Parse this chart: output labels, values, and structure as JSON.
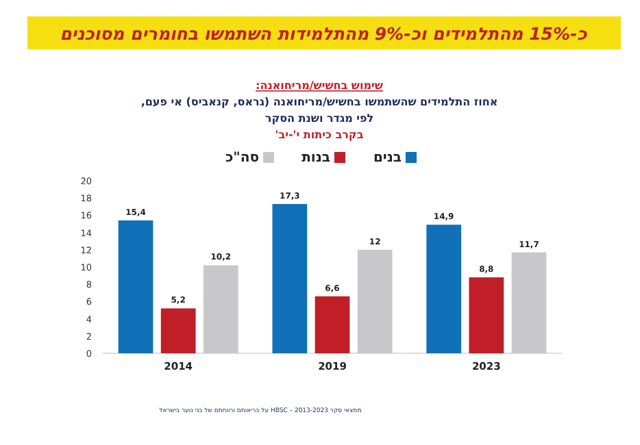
{
  "chart_data": {
    "type": "bar",
    "title": "כ-15% מהתלמידים וכ-9% מהתלמידות השתמשו בחומרים מסוכנים",
    "subtitle": "שימוש בחשיש/מריחואנה:\nאחוז התלמידים שהשתמשו בחשיש/מריחואנה (גראס, קנאביס) אי פעם,\nלפי מגדר ושנת הסקר\nבקרב כיתות י'-יב'",
    "categories": [
      "2014",
      "2019",
      "2023"
    ],
    "series": [
      {
        "name": "בנים",
        "color": "#1070b8",
        "values": [
          15.4,
          17.3,
          14.9
        ],
        "value_labels": [
          "15,4",
          "17,3",
          "14,9"
        ]
      },
      {
        "name": "בנות",
        "color": "#c01f28",
        "values": [
          5.2,
          6.6,
          8.8
        ],
        "value_labels": [
          "5,2",
          "6,6",
          "8,8"
        ]
      },
      {
        "name": "סה\"כ",
        "color": "#c8c8ca",
        "values": [
          10.2,
          12,
          11.7
        ],
        "value_labels": [
          "10,2",
          "12",
          "11,7"
        ]
      }
    ],
    "ylim": [
      0,
      20
    ],
    "yticks": [
      0,
      2,
      4,
      6,
      8,
      10,
      12,
      14,
      16,
      18,
      20
    ],
    "grid": false,
    "legend": "top",
    "annotations": [
      "ממצאי סקר HBSC – 2013-2023 על בריאותם ורווחתם של בני נוער בישראל"
    ]
  }
}
